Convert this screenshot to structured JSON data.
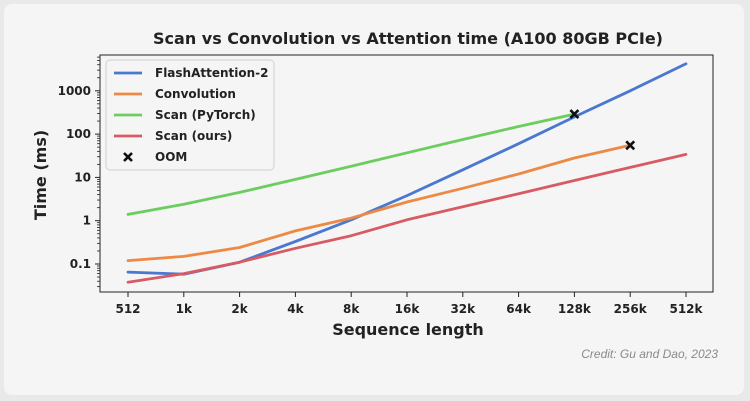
{
  "credit": "Credit: Gu and Dao, 2023",
  "chart_data": {
    "type": "line",
    "title": "Scan vs Convolution vs Attention time (A100 80GB PCIe)",
    "xlabel": "Sequence length",
    "ylabel": "Time (ms)",
    "x_scale": "log2",
    "y_scale": "log10",
    "categories": [
      "512",
      "1k",
      "2k",
      "4k",
      "8k",
      "16k",
      "32k",
      "64k",
      "128k",
      "256k",
      "512k"
    ],
    "yticks": [
      {
        "value": 0.1,
        "label": "0.1"
      },
      {
        "value": 1,
        "label": "1"
      },
      {
        "value": 10,
        "label": "10"
      },
      {
        "value": 100,
        "label": "100"
      },
      {
        "value": 1000,
        "label": "1000"
      }
    ],
    "legend_position": "top-left",
    "series": [
      {
        "name": "FlashAttention-2",
        "color": "#4a78d0",
        "values": [
          0.065,
          0.058,
          0.11,
          0.33,
          1.05,
          3.8,
          15,
          60,
          250,
          1000,
          4200
        ]
      },
      {
        "name": "Convolution",
        "color": "#ec8a45",
        "values": [
          0.12,
          0.15,
          0.24,
          0.58,
          1.15,
          2.7,
          5.6,
          12,
          28,
          55,
          null
        ]
      },
      {
        "name": "Scan (PyTorch)",
        "color": "#6ccd5f",
        "values": [
          1.4,
          2.4,
          4.5,
          9,
          18,
          37,
          75,
          150,
          290,
          null,
          null
        ]
      },
      {
        "name": "Scan (ours)",
        "color": "#d85a63",
        "values": [
          0.038,
          0.06,
          0.11,
          0.23,
          0.45,
          1.05,
          2.1,
          4.2,
          8.5,
          17,
          34
        ]
      }
    ],
    "oom_label": "OOM",
    "oom_points": [
      {
        "x": "128k",
        "y": 290
      },
      {
        "x": "256k",
        "y": 55
      }
    ]
  }
}
